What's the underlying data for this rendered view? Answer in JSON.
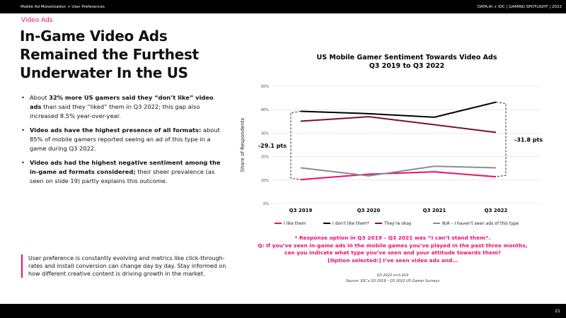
{
  "header": {
    "left": "Mobile Ad Monetization + User Preferences",
    "right": "DATA.AI + IDC  |  GAMING SPOTLIGHT  | 2023"
  },
  "section": "Video Ads",
  "title": "In-Game Video Ads Remained the Furthest Underwater In the US",
  "bullets": [
    {
      "pre": "About ",
      "bold": "32% more US gamers said they “don’t like” video ads",
      "post": " than said they “liked” them in Q3 2022; this gap also increased 8.5% year-over-year."
    },
    {
      "pre": "",
      "bold": "Video ads have the highest presence of all formats:",
      "post": " about 85% of mobile gamers reported seeing an ad of this type in a game during Q3 2022."
    },
    {
      "pre": "",
      "bold": "Video ads had the highest negative sentiment among the in-game ad formats considered;",
      "post": " their sheer prevalence (as seen on slide 19) partly explains this outcome."
    }
  ],
  "callout": "User preference is constantly evolving and metrics like click-through-rates and install conversion can change day by day. Stay informed on how different creative content is driving growth in the market.",
  "note": [
    "* Response option in Q3 2019 – Q3 2021 was “I can’t stand them”.",
    "Q: If you’ve seen in-game ads in the mobile games you’ve played in the past three months, can you indicate what type you’ve seen and your attitude towards them?",
    "[Option selected:] I’ve seen video ads and…"
  ],
  "source": [
    "Q3 2022 n=3,414",
    "Source: IDC’s Q3 2019 – Q3 2022 US Gamer Surveys"
  ],
  "page": "21",
  "chart_data": {
    "type": "line",
    "title": [
      "US Mobile Gamer Sentiment Towards Video Ads",
      "Q3 2019 to Q3 2022"
    ],
    "ylabel": "Share of Respondents",
    "xlabel": "",
    "categories": [
      "Q3 2019",
      "Q3 2020",
      "Q3 2021",
      "Q3 2022"
    ],
    "ylim": [
      0,
      50
    ],
    "yticks": [
      "0%",
      "10%",
      "20%",
      "30%",
      "40%",
      "50%"
    ],
    "grid": true,
    "legend": "bottom",
    "series": [
      {
        "name": "I like them",
        "color": "#e8106e",
        "values": [
          10.2,
          12.5,
          13.5,
          11.4
        ]
      },
      {
        "name": "I don't like them*",
        "color": "#000000",
        "values": [
          39.3,
          38.3,
          36.8,
          43.2
        ]
      },
      {
        "name": "They're okay",
        "color": "#7a0f3c",
        "values": [
          35.1,
          37.0,
          33.6,
          30.3
        ]
      },
      {
        "name": "N/A – I haven't seen ads of this type",
        "color": "#8c8c8c",
        "values": [
          15.2,
          11.8,
          15.9,
          15.2
        ]
      }
    ],
    "annotations": [
      {
        "text": "-29.1 pts",
        "category": "Q3 2019"
      },
      {
        "text": "-31.8 pts",
        "category": "Q3 2022"
      }
    ]
  }
}
